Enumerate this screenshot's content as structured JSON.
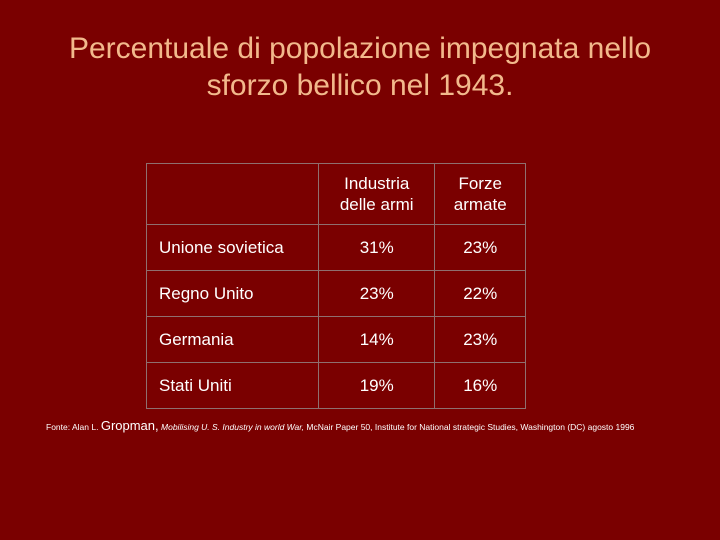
{
  "slide": {
    "title_line1": "Percentuale di popolazione impegnata nello",
    "title_line2": "sforzo bellico nel 1943."
  },
  "table": {
    "headers": [
      "",
      "Industria delle armi",
      "Forze armate"
    ],
    "header_lines": {
      "col1": [
        "Industria",
        "delle armi"
      ],
      "col2": [
        "Forze",
        "armate"
      ]
    },
    "rows": [
      {
        "country": "Unione sovietica",
        "industria": "31%",
        "forze": "23%"
      },
      {
        "country": "Regno Unito",
        "industria": "23%",
        "forze": "22%"
      },
      {
        "country": "Germania",
        "industria": "14%",
        "forze": "23%"
      },
      {
        "country": "Stati Uniti",
        "industria": "19%",
        "forze": "16%"
      }
    ]
  },
  "source": {
    "prefix": "Fonte: Alan L.",
    "author_surname": "Gropman,",
    "work": "Mobilising U. S. Industry in world War,",
    "rest": "McNair Paper 50, Institute for National strategic Studies, Washington (DC) agosto 1996"
  },
  "colors": {
    "background": "#7a0000",
    "title": "#f2b98c",
    "text": "#ffffff",
    "table_border": "#8f6f6f"
  }
}
